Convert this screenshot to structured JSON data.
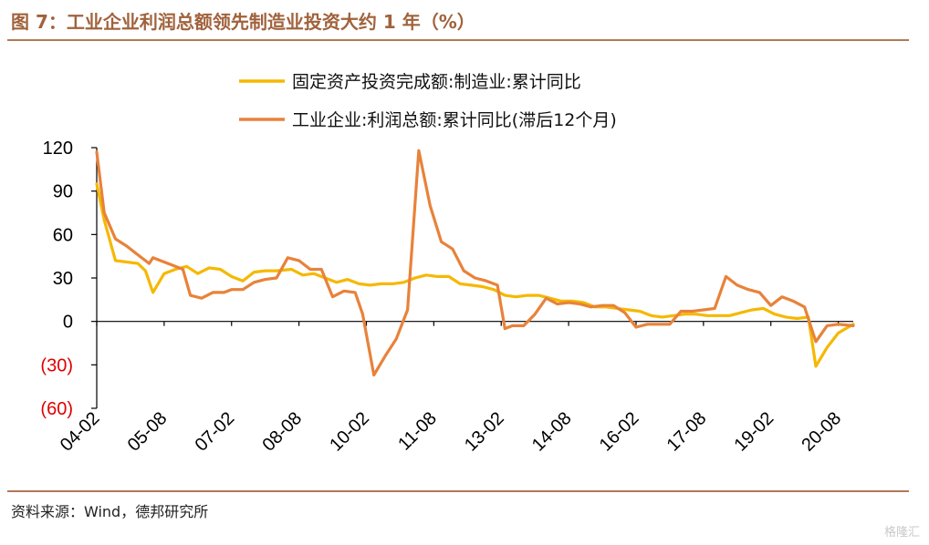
{
  "figure": {
    "title": "图 7：工业企业利润总额领先制造业投资大约 1 年（%）",
    "source": "资料来源：Wind，德邦研究所",
    "watermark": "格隆汇"
  },
  "chart_data": {
    "type": "line",
    "ylim": [
      -60,
      120
    ],
    "y_ticks": [
      120,
      90,
      60,
      30,
      0,
      -30,
      -60
    ],
    "y_tick_labels": [
      "120",
      "90",
      "60",
      "30",
      "0",
      "(30)",
      "(60)"
    ],
    "negative_tick_color": "#e00000",
    "x_range": [
      "2004-02",
      "2020-12"
    ],
    "x_tick_labels": [
      "04-02",
      "05-08",
      "07-02",
      "08-08",
      "10-02",
      "11-08",
      "13-02",
      "14-08",
      "16-02",
      "17-08",
      "19-02",
      "20-08"
    ],
    "grid": false,
    "legend_position": "top",
    "series": [
      {
        "name": "固定资产投资完成额:制造业:累计同比",
        "color": "#f5b800",
        "points": [
          [
            "2004-02",
            95
          ],
          [
            "2004-04",
            70
          ],
          [
            "2004-07",
            42
          ],
          [
            "2004-10",
            41
          ],
          [
            "2005-01",
            40
          ],
          [
            "2005-03",
            35
          ],
          [
            "2005-05",
            20
          ],
          [
            "2005-08",
            33
          ],
          [
            "2005-11",
            36
          ],
          [
            "2006-02",
            38
          ],
          [
            "2006-05",
            33
          ],
          [
            "2006-08",
            37
          ],
          [
            "2006-11",
            36
          ],
          [
            "2007-02",
            31
          ],
          [
            "2007-05",
            28
          ],
          [
            "2007-08",
            34
          ],
          [
            "2007-11",
            35
          ],
          [
            "2008-02",
            35
          ],
          [
            "2008-06",
            36
          ],
          [
            "2008-09",
            32
          ],
          [
            "2008-12",
            33
          ],
          [
            "2009-03",
            30
          ],
          [
            "2009-06",
            27
          ],
          [
            "2009-09",
            29
          ],
          [
            "2009-12",
            26
          ],
          [
            "2010-03",
            25
          ],
          [
            "2010-06",
            26
          ],
          [
            "2010-09",
            26
          ],
          [
            "2010-12",
            27
          ],
          [
            "2011-03",
            30
          ],
          [
            "2011-06",
            32
          ],
          [
            "2011-09",
            31
          ],
          [
            "2011-12",
            31
          ],
          [
            "2012-03",
            26
          ],
          [
            "2012-06",
            25
          ],
          [
            "2012-09",
            24
          ],
          [
            "2012-12",
            22
          ],
          [
            "2013-03",
            18
          ],
          [
            "2013-06",
            17
          ],
          [
            "2013-09",
            18
          ],
          [
            "2013-12",
            18
          ],
          [
            "2014-03",
            16
          ],
          [
            "2014-06",
            14
          ],
          [
            "2014-09",
            14
          ],
          [
            "2014-12",
            13
          ],
          [
            "2015-03",
            10
          ],
          [
            "2015-06",
            10
          ],
          [
            "2015-09",
            9
          ],
          [
            "2015-12",
            8
          ],
          [
            "2016-03",
            7
          ],
          [
            "2016-06",
            4
          ],
          [
            "2016-09",
            3
          ],
          [
            "2016-12",
            4
          ],
          [
            "2017-03",
            5
          ],
          [
            "2017-06",
            5
          ],
          [
            "2017-09",
            4
          ],
          [
            "2017-12",
            4
          ],
          [
            "2018-03",
            4
          ],
          [
            "2018-06",
            6
          ],
          [
            "2018-09",
            8
          ],
          [
            "2018-12",
            9
          ],
          [
            "2019-03",
            5
          ],
          [
            "2019-06",
            3
          ],
          [
            "2019-09",
            2
          ],
          [
            "2019-12",
            3
          ],
          [
            "2020-02",
            -31
          ],
          [
            "2020-05",
            -18
          ],
          [
            "2020-08",
            -8
          ],
          [
            "2020-12",
            -2
          ]
        ]
      },
      {
        "name": "工业企业:利润总额:累计同比(滞后12个月)",
        "color": "#e8823a",
        "points": [
          [
            "2004-02",
            117
          ],
          [
            "2004-04",
            75
          ],
          [
            "2004-07",
            57
          ],
          [
            "2004-10",
            52
          ],
          [
            "2005-01",
            46
          ],
          [
            "2005-04",
            40
          ],
          [
            "2005-05",
            44
          ],
          [
            "2005-08",
            41
          ],
          [
            "2005-11",
            38
          ],
          [
            "2006-01",
            36
          ],
          [
            "2006-03",
            18
          ],
          [
            "2006-06",
            16
          ],
          [
            "2006-09",
            20
          ],
          [
            "2006-12",
            20
          ],
          [
            "2007-02",
            22
          ],
          [
            "2007-05",
            22
          ],
          [
            "2007-08",
            27
          ],
          [
            "2007-11",
            29
          ],
          [
            "2008-02",
            30
          ],
          [
            "2008-05",
            44
          ],
          [
            "2008-08",
            42
          ],
          [
            "2008-11",
            36
          ],
          [
            "2009-02",
            36
          ],
          [
            "2009-05",
            17
          ],
          [
            "2009-08",
            21
          ],
          [
            "2009-11",
            20
          ],
          [
            "2010-01",
            5
          ],
          [
            "2010-04",
            -37
          ],
          [
            "2010-07",
            -24
          ],
          [
            "2010-10",
            -12
          ],
          [
            "2011-01",
            8
          ],
          [
            "2011-04",
            118
          ],
          [
            "2011-07",
            80
          ],
          [
            "2011-10",
            55
          ],
          [
            "2012-01",
            50
          ],
          [
            "2012-04",
            35
          ],
          [
            "2012-07",
            30
          ],
          [
            "2012-10",
            28
          ],
          [
            "2013-01",
            25
          ],
          [
            "2013-03",
            -5
          ],
          [
            "2013-05",
            -3
          ],
          [
            "2013-08",
            -3
          ],
          [
            "2013-11",
            5
          ],
          [
            "2014-02",
            16
          ],
          [
            "2014-05",
            12
          ],
          [
            "2014-08",
            13
          ],
          [
            "2014-11",
            12
          ],
          [
            "2015-02",
            10
          ],
          [
            "2015-05",
            11
          ],
          [
            "2015-08",
            11
          ],
          [
            "2015-11",
            6
          ],
          [
            "2016-02",
            -4
          ],
          [
            "2016-05",
            -2
          ],
          [
            "2016-08",
            -2
          ],
          [
            "2016-11",
            -2
          ],
          [
            "2017-02",
            7
          ],
          [
            "2017-05",
            7
          ],
          [
            "2017-08",
            8
          ],
          [
            "2017-11",
            9
          ],
          [
            "2018-02",
            31
          ],
          [
            "2018-05",
            25
          ],
          [
            "2018-08",
            22
          ],
          [
            "2018-11",
            20
          ],
          [
            "2019-02",
            11
          ],
          [
            "2019-05",
            17
          ],
          [
            "2019-08",
            14
          ],
          [
            "2019-11",
            10
          ],
          [
            "2020-02",
            -14
          ],
          [
            "2020-05",
            -3
          ],
          [
            "2020-08",
            -2
          ],
          [
            "2020-12",
            -3
          ]
        ]
      }
    ]
  }
}
